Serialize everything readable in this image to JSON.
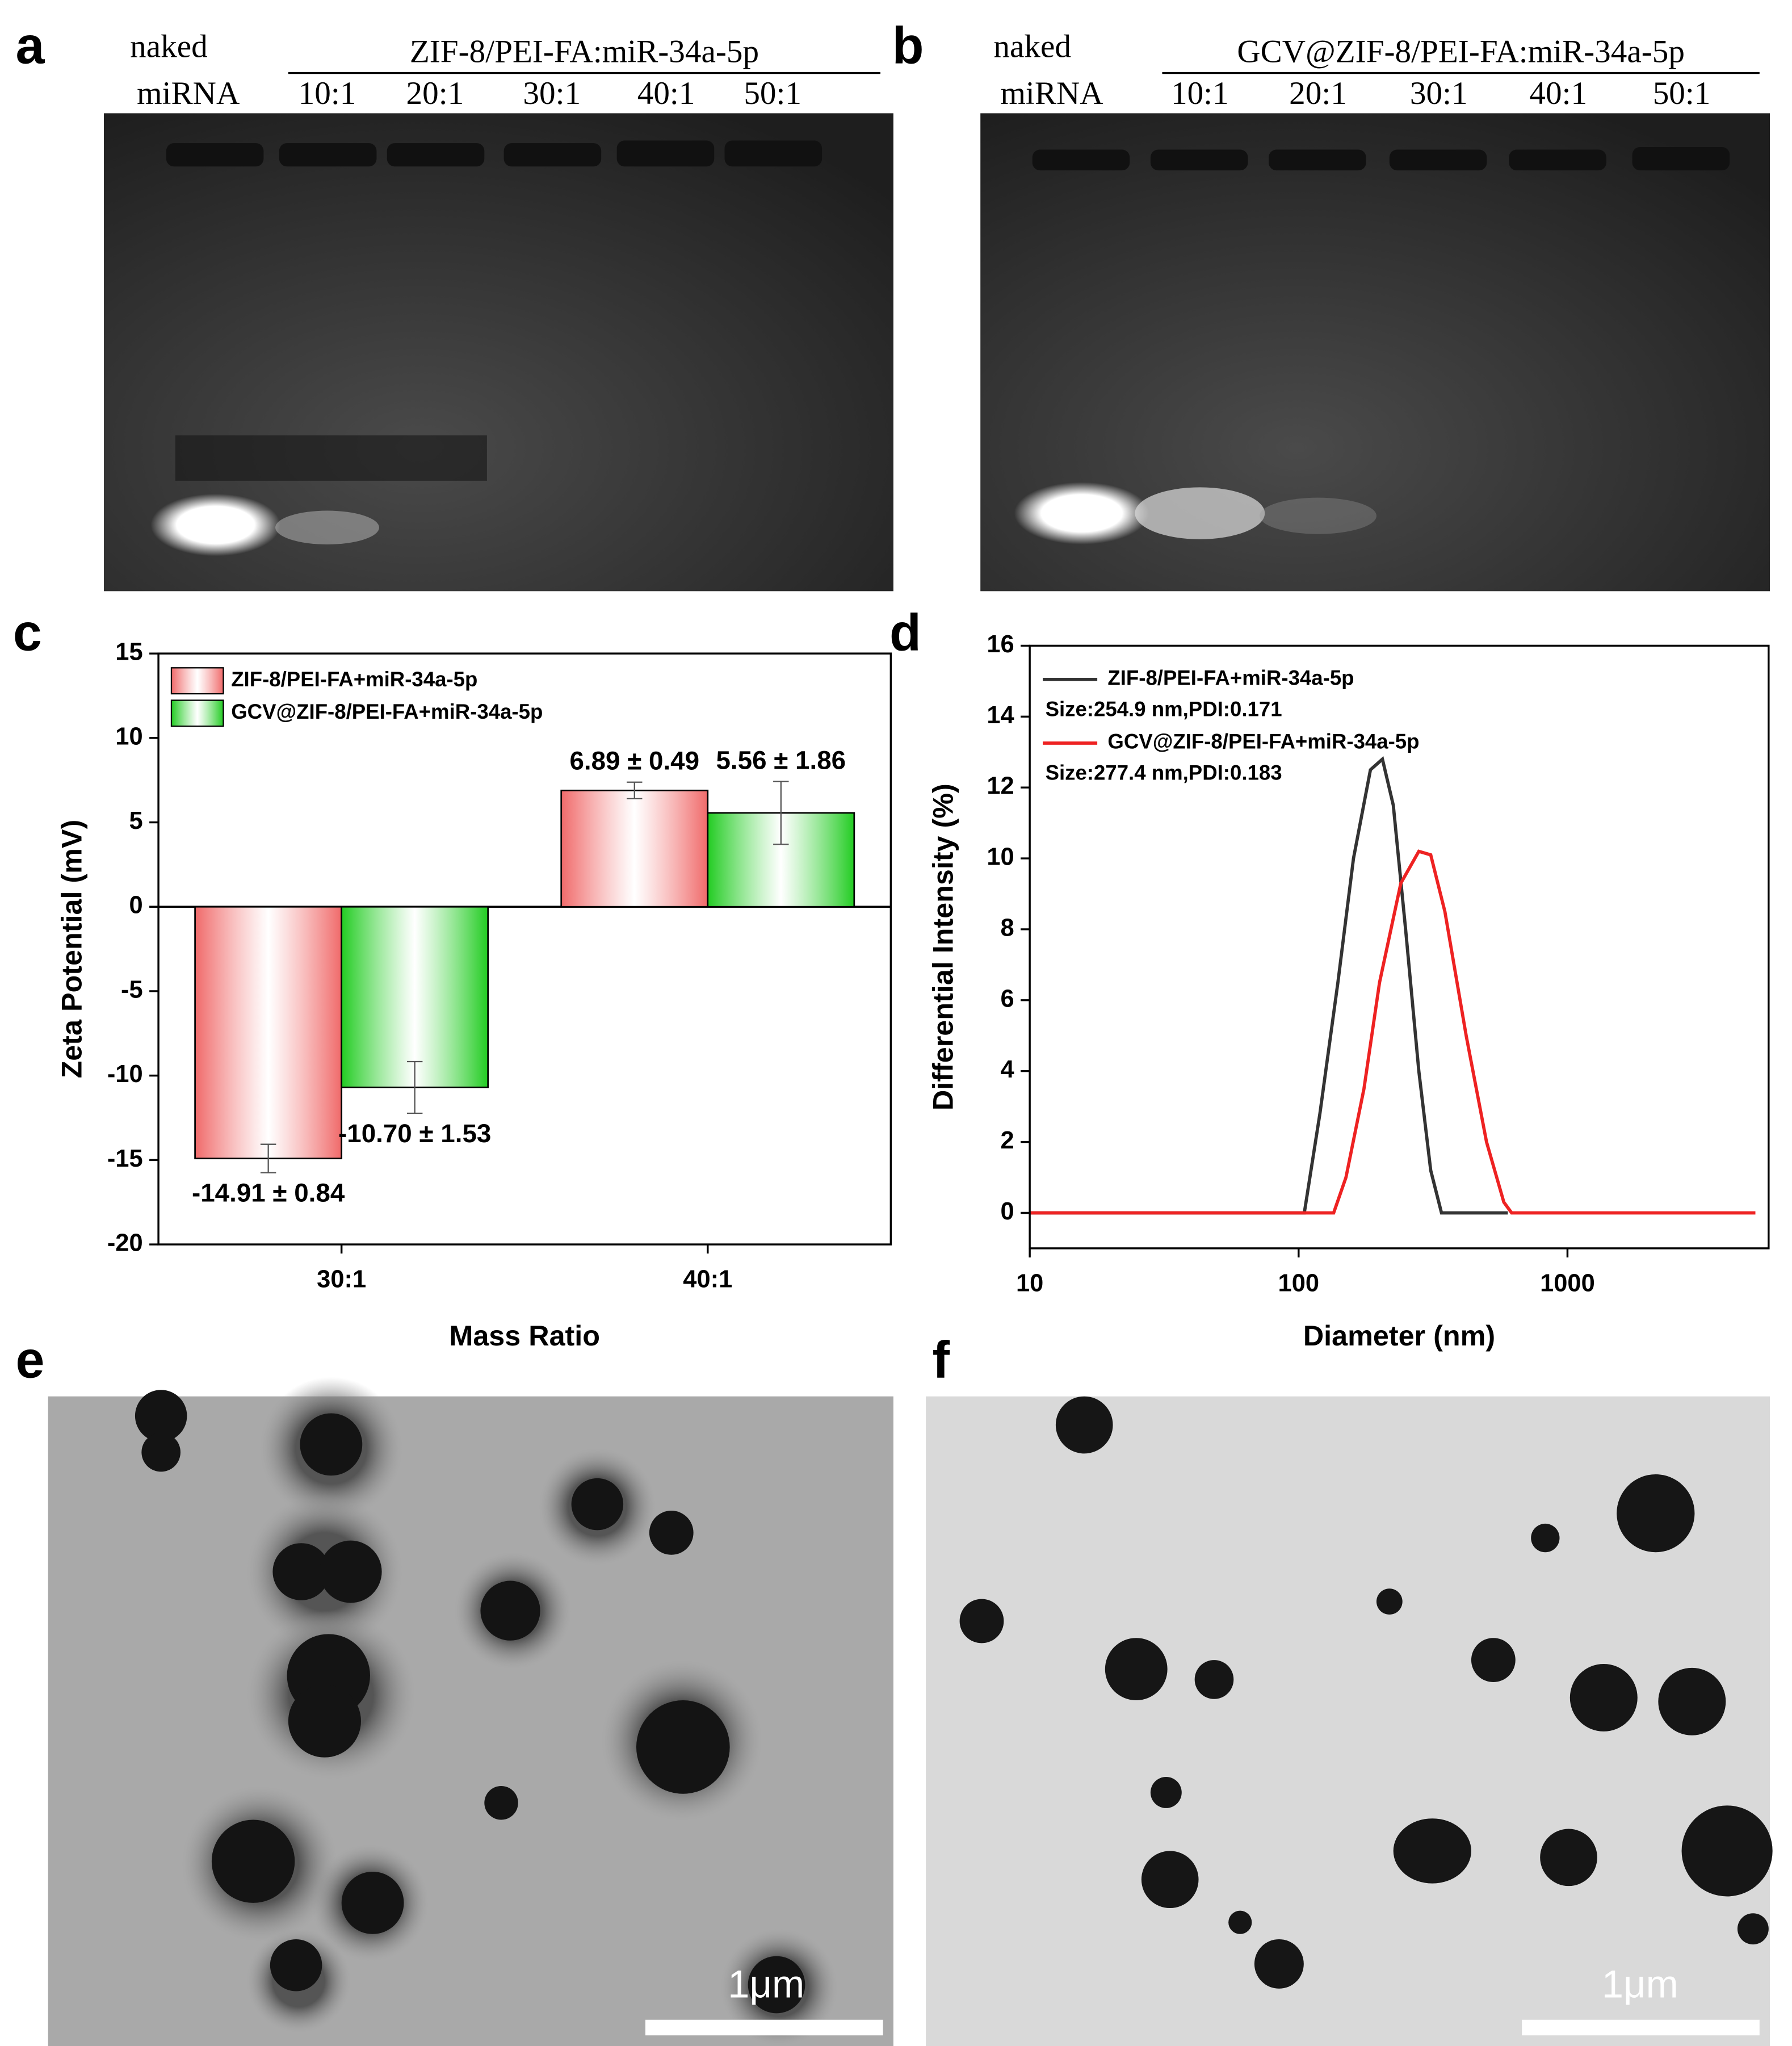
{
  "panels": {
    "a": {
      "label": "a",
      "naked_miRNA": [
        "naked",
        "miRNA"
      ],
      "group_label": "ZIF-8/PEI-FA:miR-34a-5p",
      "lanes": [
        "10:1",
        "20:1",
        "30:1",
        "40:1",
        "50:1"
      ]
    },
    "b": {
      "label": "b",
      "naked_miRNA": [
        "naked",
        "miRNA"
      ],
      "group_label": "GCV@ZIF-8/PEI-FA:miR-34a-5p",
      "lanes": [
        "10:1",
        "20:1",
        "30:1",
        "40:1",
        "50:1"
      ]
    },
    "e": {
      "label": "e",
      "scale_bar": "1μm"
    },
    "f": {
      "label": "f",
      "scale_bar": "1μm"
    }
  },
  "chart_data": [
    {
      "type": "bar",
      "panel_label": "c",
      "x_label": "Mass Ratio",
      "y_label": "Zeta Potential (mV)",
      "categories": [
        "30:1",
        "40:1"
      ],
      "series": [
        {
          "name": "ZIF-8/PEI-FA+miR-34a-5p",
          "color": "#f06a6a",
          "values": [
            -14.91,
            6.89
          ],
          "errors": [
            0.84,
            0.49
          ],
          "value_labels": [
            "-14.91 ± 0.84",
            "6.89 ± 0.49"
          ]
        },
        {
          "name": "GCV@ZIF-8/PEI-FA+miR-34a-5p",
          "color": "#22cc22",
          "values": [
            -10.7,
            5.56
          ],
          "errors": [
            1.53,
            1.86
          ],
          "value_labels": [
            "-10.70 ± 1.53",
            "5.56 ± 1.86"
          ]
        }
      ],
      "ylim": [
        -20,
        15
      ],
      "yticks": [
        -20,
        -15,
        -10,
        -5,
        0,
        5,
        10,
        15
      ],
      "grid": false,
      "legend": "top-left"
    },
    {
      "type": "line",
      "panel_label": "d",
      "x_label": "Diameter (nm)",
      "y_label": "Differential Intensity (%)",
      "log_x": true,
      "xlim": [
        10,
        5600
      ],
      "xticks": [
        10,
        100,
        1000
      ],
      "ylim": [
        -1,
        16
      ],
      "yticks": [
        0,
        2,
        4,
        6,
        8,
        10,
        12,
        14,
        16
      ],
      "grid": false,
      "legend": "top-left",
      "series": [
        {
          "name": "ZIF-8/PEI-FA+miR-34a-5p",
          "annotation": "Size:254.9 nm,PDI:0.171",
          "color": "#333333",
          "x": [
            10,
            105,
            120,
            140,
            160,
            185,
            205,
            225,
            250,
            280,
            310,
            340,
            600
          ],
          "values": [
            0,
            0,
            2.8,
            6.5,
            10,
            12.5,
            12.8,
            11.5,
            8,
            4,
            1.2,
            0,
            0
          ]
        },
        {
          "name": "GCV@ZIF-8/PEI-FA+miR-34a-5p",
          "annotation": "Size:277.4 nm,PDI:0.183",
          "color": "#ee2222",
          "x": [
            10,
            135,
            150,
            175,
            200,
            240,
            280,
            310,
            350,
            420,
            500,
            580,
            620,
            5000
          ],
          "values": [
            0,
            0,
            1,
            3.5,
            6.5,
            9.3,
            10.2,
            10.1,
            8.5,
            5,
            2,
            0.3,
            0,
            0
          ]
        }
      ]
    }
  ]
}
